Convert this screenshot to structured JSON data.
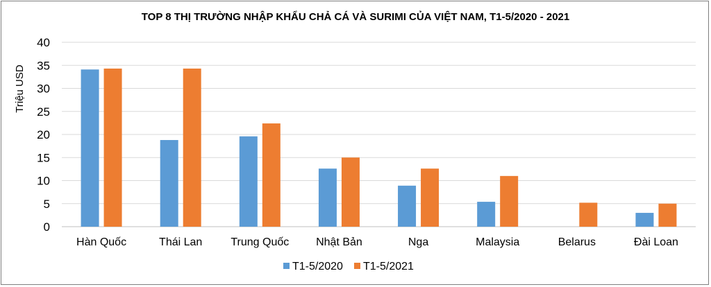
{
  "chart_data": {
    "type": "bar",
    "title": "TOP 8 THỊ TRƯỜNG NHẬP KHẨU CHẢ CÁ VÀ SURIMI CỦA VIỆT NAM, T1-5/2020 - 2021",
    "xlabel": "",
    "ylabel": "Triệu USD",
    "ylim": [
      0,
      40
    ],
    "yticks": [
      0,
      5,
      10,
      15,
      20,
      25,
      30,
      35,
      40
    ],
    "grid": true,
    "legend_position": "bottom",
    "categories": [
      "Hàn Quốc",
      "Thái Lan",
      "Trung Quốc",
      "Nhật Bản",
      "Nga",
      "Malaysia",
      "Belarus",
      "Đài Loan"
    ],
    "series": [
      {
        "name": "T1-5/2020",
        "color": "#5b9bd5",
        "values": [
          34.1,
          18.8,
          19.6,
          12.6,
          8.9,
          5.4,
          0,
          3.0
        ]
      },
      {
        "name": "T1-5/2021",
        "color": "#ed7d31",
        "values": [
          34.3,
          34.3,
          22.4,
          15.0,
          12.6,
          11.0,
          5.2,
          5.0
        ]
      }
    ]
  }
}
